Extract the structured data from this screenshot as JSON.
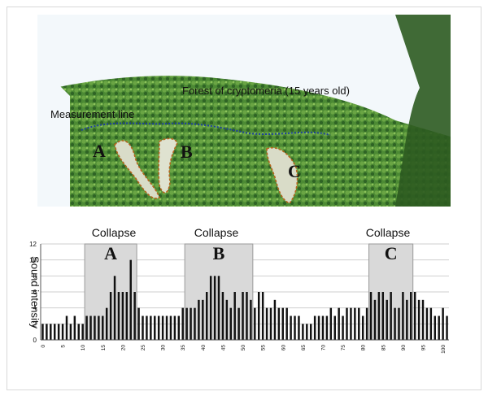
{
  "photo": {
    "caption": "Forest of cryptomeria (15 years old)",
    "measurement_label": "Measurement line",
    "site_labels": [
      "A",
      "B",
      "C"
    ]
  },
  "colors": {
    "bar": "#111111",
    "highlight_fill": "#d9d9d9",
    "measurement_line": "#1d3f9e",
    "collapse_outline": "#b5651d",
    "forest_dark": "#3e7a2e",
    "forest_light": "#7fb852",
    "sky": "#f2f7fa"
  },
  "chart_data": {
    "type": "bar",
    "ylabel": "Sound intensity",
    "xlabel": "",
    "ylim": [
      0,
      12
    ],
    "yticks": [
      0,
      2,
      4,
      6,
      8,
      10,
      12
    ],
    "xticks": [
      0,
      5,
      10,
      15,
      20,
      25,
      30,
      35,
      40,
      45,
      50,
      55,
      60,
      65,
      70,
      75,
      80,
      85,
      90,
      95,
      100
    ],
    "grid": true,
    "x": [
      0,
      1,
      2,
      3,
      4,
      5,
      6,
      7,
      8,
      9,
      10,
      11,
      12,
      13,
      14,
      15,
      16,
      17,
      18,
      19,
      20,
      21,
      22,
      23,
      24,
      25,
      26,
      27,
      28,
      29,
      30,
      31,
      32,
      33,
      34,
      35,
      36,
      37,
      38,
      39,
      40,
      41,
      42,
      43,
      44,
      45,
      46,
      47,
      48,
      49,
      50,
      51,
      52,
      53,
      54,
      55,
      56,
      57,
      58,
      59,
      60,
      61,
      62,
      63,
      64,
      65,
      66,
      67,
      68,
      69,
      70,
      71,
      72,
      73,
      74,
      75,
      76,
      77,
      78,
      79,
      80,
      81,
      82,
      83,
      84,
      85,
      86,
      87,
      88,
      89,
      90,
      91,
      92,
      93,
      94,
      95,
      96,
      97,
      98,
      99,
      100,
      101
    ],
    "values": [
      2,
      2,
      2,
      2,
      2,
      2,
      3,
      2,
      3,
      2,
      2,
      3,
      3,
      3,
      3,
      3,
      4,
      6,
      8,
      6,
      6,
      6,
      10,
      6,
      4,
      3,
      3,
      3,
      3,
      3,
      3,
      3,
      3,
      3,
      3,
      4,
      4,
      4,
      4,
      5,
      5,
      6,
      8,
      8,
      8,
      6,
      5,
      4,
      6,
      4,
      6,
      6,
      5,
      4,
      6,
      6,
      4,
      4,
      5,
      4,
      4,
      4,
      3,
      3,
      3,
      2,
      2,
      2,
      3,
      3,
      3,
      3,
      4,
      3,
      4,
      3,
      4,
      4,
      4,
      4,
      3,
      4,
      6,
      5,
      6,
      6,
      5,
      6,
      4,
      4,
      6,
      5,
      6,
      6,
      5,
      5,
      4,
      4,
      3,
      3,
      4,
      3
    ],
    "regions": [
      {
        "label": "Collapse",
        "letter": "A",
        "start": 10.5,
        "end": 23.5
      },
      {
        "label": "Collapse",
        "letter": "B",
        "start": 35.5,
        "end": 52.5
      },
      {
        "label": "Collapse",
        "letter": "C",
        "start": 81.5,
        "end": 92.5
      }
    ]
  }
}
